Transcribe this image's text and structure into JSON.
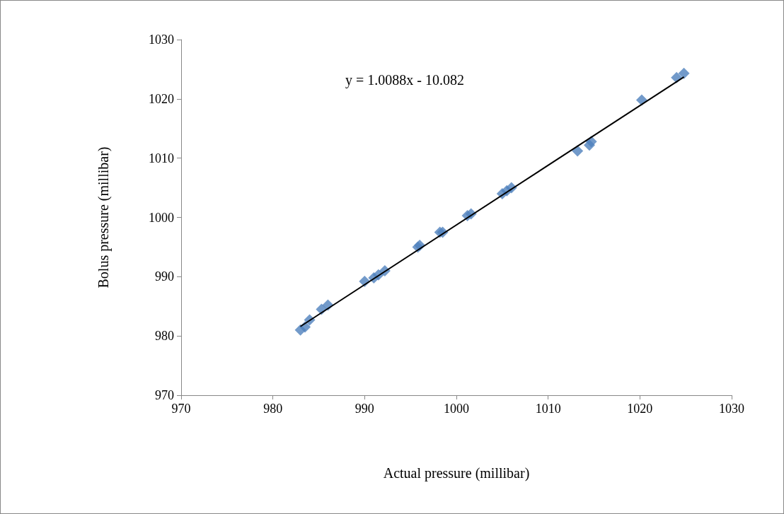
{
  "chart_data": {
    "type": "scatter",
    "xlabel": "Actual pressure (millibar)",
    "ylabel": "Bolus pressure (millibar)",
    "annotations": [
      "y = 1.0088x - 10.082"
    ],
    "xlim": [
      970,
      1030
    ],
    "xticks": [
      970,
      980,
      990,
      1000,
      1010,
      1020,
      1030
    ],
    "ylim": [
      970,
      1030
    ],
    "yticks": [
      970,
      980,
      990,
      1000,
      1010,
      1020,
      1030
    ],
    "grid": false,
    "marker": "diamond",
    "series": [
      {
        "color": "#4f81bd",
        "x": [
          983,
          983.5,
          984,
          985.3,
          986,
          990,
          991,
          991.5,
          992.2,
          995.8,
          996,
          998.2,
          998.5,
          1001.2,
          1001.6,
          1005,
          1005.5,
          1006,
          1013.2,
          1014.5,
          1014.7,
          1020.2,
          1024,
          1024.8
        ],
        "values": [
          981,
          981.5,
          982.7,
          984.5,
          985.2,
          989.2,
          989.8,
          990.3,
          991,
          995,
          995.3,
          997.5,
          997.5,
          1000.3,
          1000.6,
          1004,
          1004.5,
          1005,
          1011.2,
          1012.2,
          1012.8,
          1019.8,
          1023.6,
          1024.3
        ]
      },
      {
        "type": "line",
        "color": "#000000",
        "marker": "none",
        "x": [
          983,
          1024.8
        ],
        "values": [
          981.6,
          1023.7
        ]
      }
    ]
  }
}
